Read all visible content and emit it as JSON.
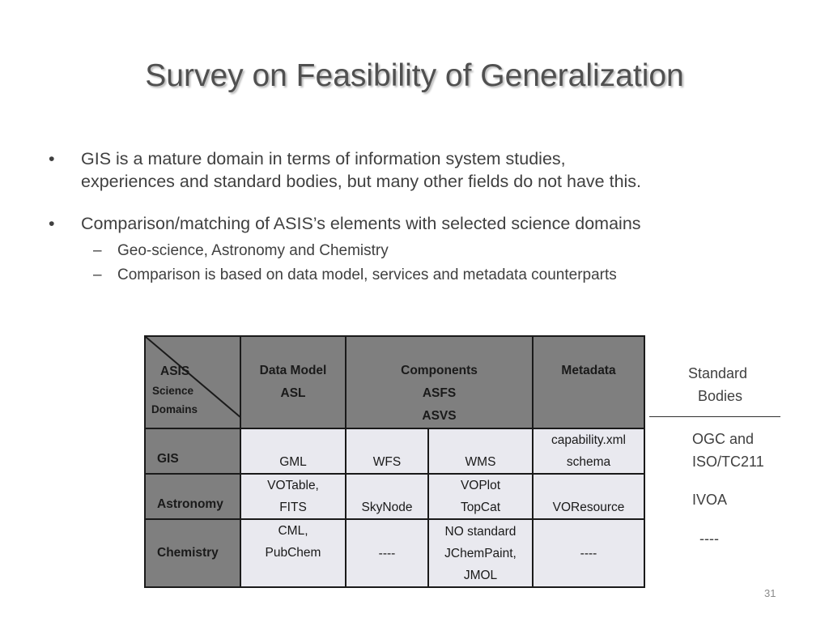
{
  "title": "Survey on Feasibility of Generalization",
  "bullets": [
    {
      "marker": "•",
      "text_line1": "GIS is a mature domain in terms of information system studies,",
      "text_line2": "experiences and standard bodies, but many other fields do not have this."
    },
    {
      "marker": "•",
      "text": "Comparison/matching of ASIS’s elements with selected science domains",
      "sub": [
        {
          "marker": "–",
          "text": "Geo-science, Astronomy and Chemistry"
        },
        {
          "marker": "–",
          "text": "Comparison is based on data model, services and metadata counterparts"
        }
      ]
    }
  ],
  "table": {
    "corner": {
      "top": "ASIS",
      "bottom1": "Science",
      "bottom2": "Domains"
    },
    "headers": {
      "data_model": "Data Model",
      "asl": "ASL",
      "components": "Components",
      "asfs": "ASFS",
      "asvs": "ASVS",
      "metadata": "Metadata"
    },
    "rows": [
      {
        "domain": "GIS",
        "data_model": [
          "GML"
        ],
        "asfs": [
          "WFS"
        ],
        "asvs": [
          "WMS"
        ],
        "metadata": [
          "capability.xml",
          "schema"
        ]
      },
      {
        "domain": "Astronomy",
        "data_model": [
          "VOTable,",
          "FITS"
        ],
        "asfs": [
          "SkyNode"
        ],
        "asvs": [
          "VOPlot",
          "TopCat"
        ],
        "metadata": [
          "VOResource"
        ]
      },
      {
        "domain": "Chemistry",
        "data_model": [
          "CML,",
          "PubChem"
        ],
        "asfs": [
          "----"
        ],
        "asvs": [
          "NO standard",
          "JChemPaint,",
          "JMOL"
        ],
        "metadata": [
          "----"
        ]
      }
    ],
    "header_bg": "#7f7f7f",
    "cell_bg": "#e9e9ef"
  },
  "standard_bodies": {
    "header_line1": "Standard",
    "header_line2": "Bodies",
    "gis_line1": "OGC and",
    "gis_line2": "ISO/TC211",
    "astronomy": "IVOA",
    "chemistry": "----"
  },
  "page_number": "31"
}
